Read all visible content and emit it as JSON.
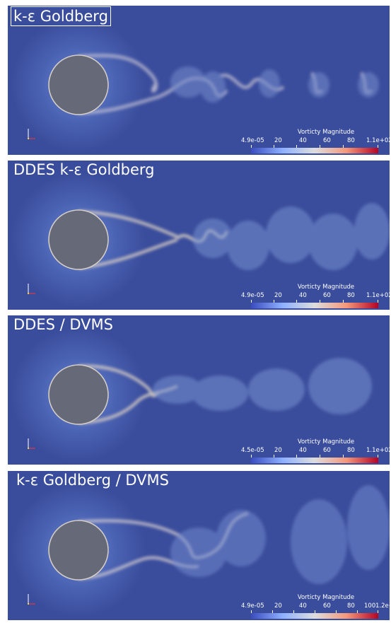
{
  "panels": [
    {
      "title": "k-ε Goldberg",
      "boxed_title": true,
      "colorbar": {
        "title": "Vorticty Magnitude",
        "labels": [
          "4.9e-05",
          "20",
          "40",
          "60",
          "80",
          "1.1e+02"
        ]
      }
    },
    {
      "title": "DDES k-ε Goldberg",
      "boxed_title": false,
      "colorbar": {
        "title": "Vorticty Magnitude",
        "labels": [
          "4.9e-05",
          "20",
          "40",
          "60",
          "80",
          "1.1e+02"
        ]
      }
    },
    {
      "title": "DDES / DVMS",
      "boxed_title": false,
      "colorbar": {
        "title": "Vorticty Magnitude",
        "labels": [
          "4.5e-05",
          "20",
          "40",
          "60",
          "80",
          "1.1e+02"
        ]
      }
    },
    {
      "title": "k-ε Goldberg / DVMS",
      "boxed_title": false,
      "colorbar": {
        "title": "Vorticty Magnitude",
        "labels": [
          "4.9e-05",
          "20",
          "40",
          "60",
          "80",
          "100",
          "1.2e+02"
        ]
      }
    }
  ],
  "colors": {
    "background": "#3a4d9c",
    "cylinder": "#666a78",
    "wake": "#e8d6c0",
    "colormap_low": "#3b4cc0",
    "colormap_mid": "#dddddd",
    "colormap_high": "#b40426"
  }
}
